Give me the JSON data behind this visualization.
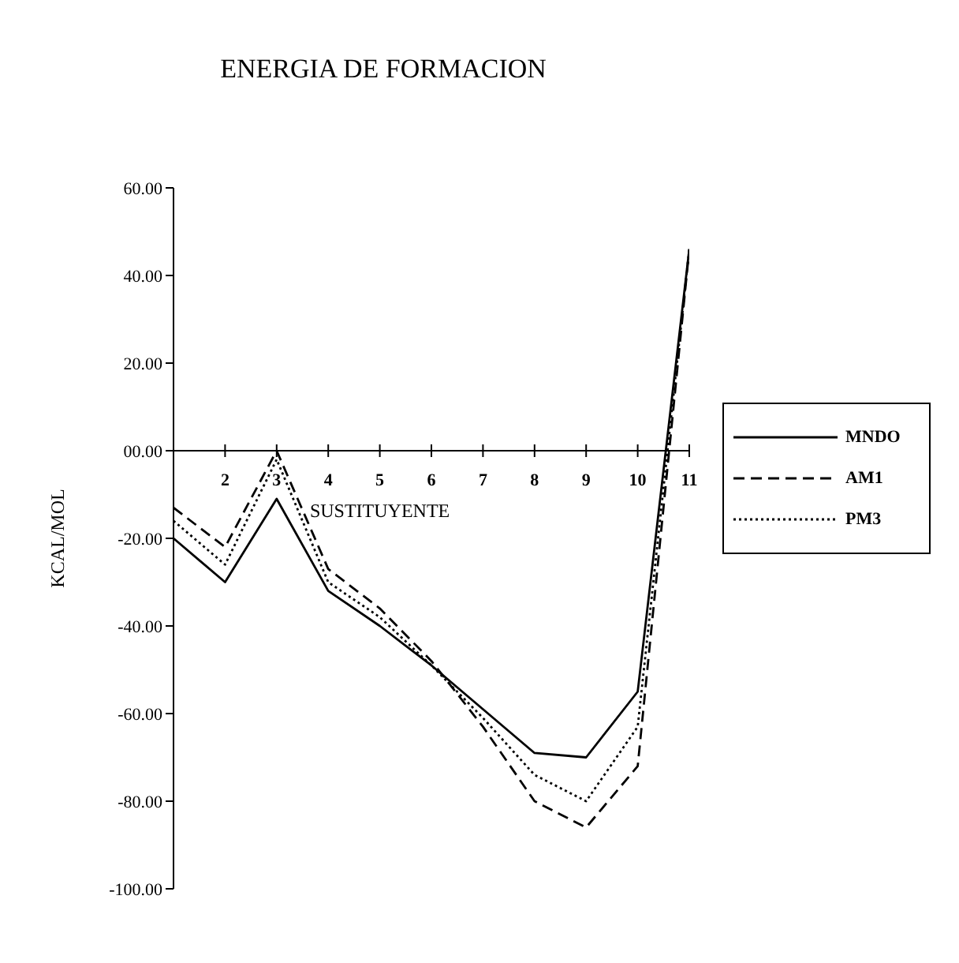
{
  "chart_data": {
    "type": "line",
    "title": "ENERGIA DE FORMACION",
    "xlabel": "SUSTITUYENTE",
    "ylabel": "KCAL/MOL",
    "categories": [
      null,
      "2",
      "3",
      "4",
      "5",
      "6",
      "7",
      "8",
      "9",
      "10",
      "11"
    ],
    "series": [
      {
        "name": "MNDO",
        "color": "#000000",
        "line_style": "solid",
        "values": [
          -20,
          -30,
          -11,
          -32,
          -40,
          -49,
          -59,
          -69,
          -70,
          -55,
          46
        ]
      },
      {
        "name": "AM1",
        "color": "#000000",
        "line_style": "dashed",
        "values": [
          -13,
          -22,
          0,
          -27,
          -36,
          -48,
          -63,
          -80,
          -86,
          -72,
          46
        ]
      },
      {
        "name": "PM3",
        "color": "#000000",
        "line_style": "dotted",
        "values": [
          -16,
          -26,
          -2,
          -30,
          -38,
          -49,
          -61,
          -74,
          -80,
          -63,
          46
        ]
      }
    ],
    "ylim": [
      -100,
      60
    ],
    "yticks": [
      {
        "value": 60,
        "label": "60.00"
      },
      {
        "value": 40,
        "label": "40.00"
      },
      {
        "value": 20,
        "label": "20.00"
      },
      {
        "value": 0,
        "label": "00.00"
      },
      {
        "value": -20,
        "label": "-20.00"
      },
      {
        "value": -40,
        "label": "-40.00"
      },
      {
        "value": -60,
        "label": "-60.00"
      },
      {
        "value": -80,
        "label": "-80.00"
      },
      {
        "value": -100,
        "label": "-100.00"
      }
    ],
    "grid": false,
    "legend": "right",
    "marker": "none"
  }
}
